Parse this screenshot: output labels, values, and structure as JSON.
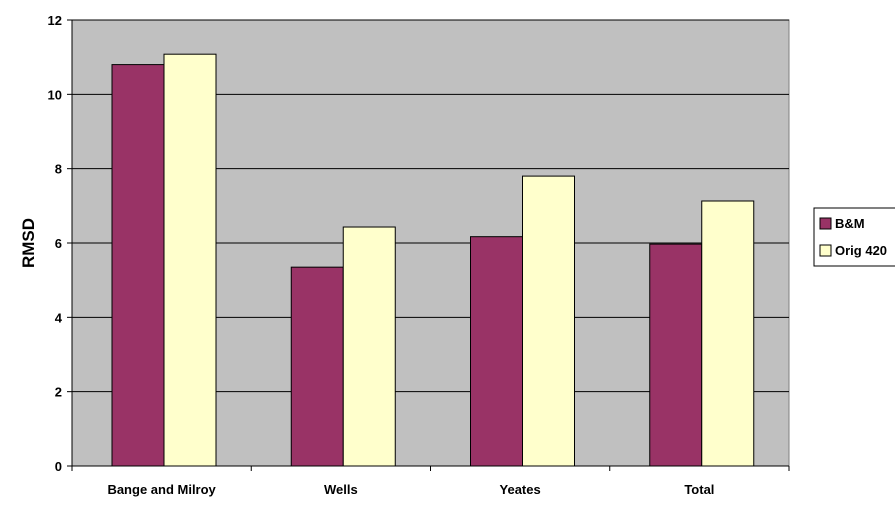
{
  "chart_data": {
    "type": "bar",
    "title": "",
    "xlabel": "",
    "ylabel": "RMSD",
    "categories": [
      "Bange and Milroy",
      "Wells",
      "Yeates",
      "Total"
    ],
    "series": [
      {
        "name": "B&M",
        "values": [
          10.8,
          5.35,
          6.17,
          5.97
        ],
        "color": "#993366"
      },
      {
        "name": "Orig 420",
        "values": [
          11.08,
          6.43,
          7.8,
          7.13
        ],
        "color": "#FFFFCC"
      }
    ],
    "ylim": [
      0,
      12
    ],
    "yticks": [
      "0",
      "2",
      "4",
      "6",
      "8",
      "10",
      "12"
    ],
    "grid": true,
    "legend_position": "right",
    "plot_background": "#C0C0C0"
  }
}
